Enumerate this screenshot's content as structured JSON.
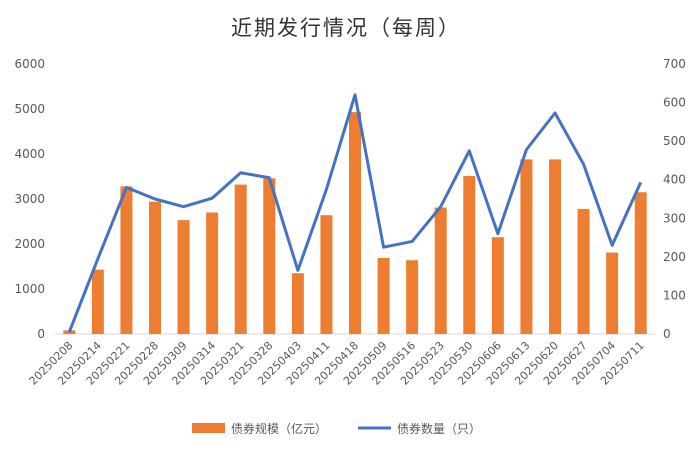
{
  "chart_data": {
    "type": "bar+line",
    "title": "近期发行情况（每周）",
    "categories": [
      "20250208",
      "20250214",
      "20250221",
      "20250228",
      "20250309",
      "20250314",
      "20250321",
      "20250328",
      "20250403",
      "20250411",
      "20250418",
      "20250509",
      "20250516",
      "20250523",
      "20250530",
      "20250606",
      "20250613",
      "20250620",
      "20250627",
      "20250704",
      "20250711"
    ],
    "series": [
      {
        "name": "债券规模（亿元）",
        "type": "bar",
        "axis": "left",
        "color": "#ED7D31",
        "values": [
          80,
          1430,
          3280,
          2940,
          2530,
          2700,
          3320,
          3460,
          1350,
          2640,
          4930,
          1690,
          1640,
          2810,
          3510,
          2150,
          3880,
          3880,
          2780,
          1810,
          3150
        ]
      },
      {
        "name": "债券数量（只）",
        "type": "line",
        "axis": "right",
        "color": "#4472C4",
        "values": [
          5,
          195,
          380,
          350,
          330,
          352,
          418,
          405,
          165,
          375,
          620,
          225,
          240,
          330,
          475,
          260,
          478,
          573,
          440,
          230,
          393
        ]
      }
    ],
    "y_left": {
      "min": 0,
      "max": 6000,
      "ticks": [
        0,
        1000,
        2000,
        3000,
        4000,
        5000,
        6000
      ]
    },
    "y_right": {
      "min": 0,
      "max": 700,
      "ticks": [
        0,
        100,
        200,
        300,
        400,
        500,
        600,
        700
      ]
    },
    "grid": false,
    "legend": "bottom"
  }
}
